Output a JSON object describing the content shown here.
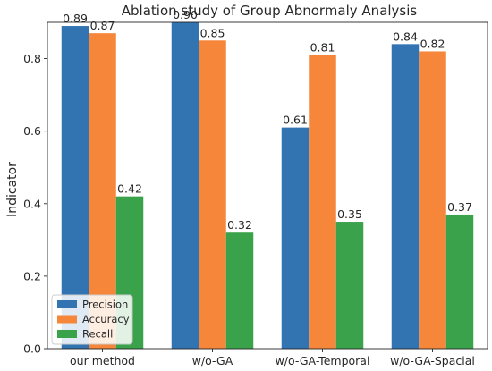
{
  "chart_data": {
    "type": "bar",
    "title": "Ablation study of Group Abnormaly Analysis",
    "xlabel": "",
    "ylabel": "Indicator",
    "categories": [
      "our method",
      "w/o-GA",
      "w/o-GA-Temporal",
      "w/o-GA-Spacial"
    ],
    "series": [
      {
        "name": "Precision",
        "color": "#3274b2",
        "values": [
          0.89,
          0.9,
          0.61,
          0.84
        ]
      },
      {
        "name": "Accuracy",
        "color": "#f6863a",
        "values": [
          0.87,
          0.85,
          0.81,
          0.82
        ]
      },
      {
        "name": "Recall",
        "color": "#3aa24b",
        "values": [
          0.42,
          0.32,
          0.35,
          0.37
        ]
      }
    ],
    "ylim": [
      0,
      0.9
    ],
    "yticks": [
      "0.0",
      "0.2",
      "0.4",
      "0.6",
      "0.8"
    ],
    "data_labels": true,
    "grid": false,
    "legend_position": "lower-left"
  }
}
